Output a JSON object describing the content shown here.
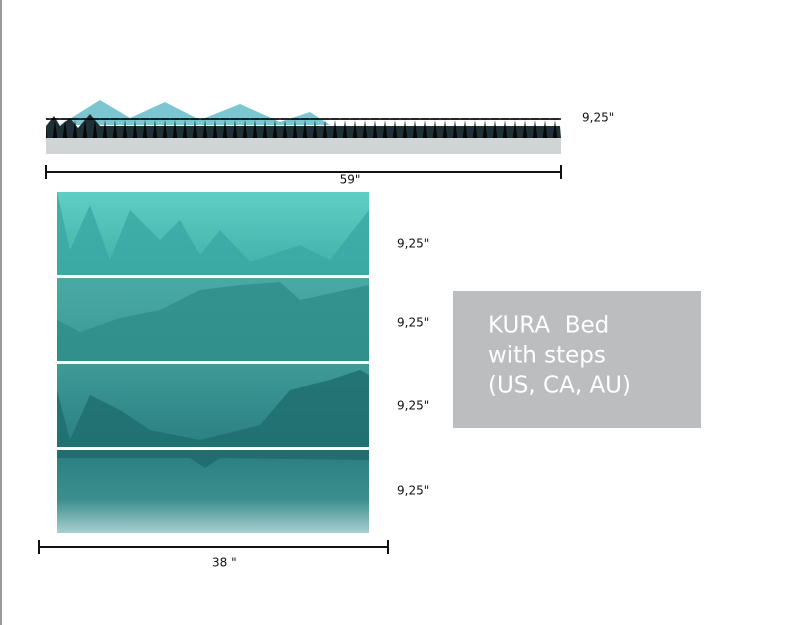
{
  "top_panel": {
    "height_label": "9,25\"",
    "width_label": "59\""
  },
  "panels": [
    {
      "height_label": "9,25\""
    },
    {
      "height_label": "9,25\""
    },
    {
      "height_label": "9,25\""
    },
    {
      "height_label": "9,25\""
    }
  ],
  "panels_width_label": "38 \"",
  "info_box": {
    "lines": [
      "KURA  Bed",
      "with steps",
      "(US, CA, AU)"
    ]
  }
}
